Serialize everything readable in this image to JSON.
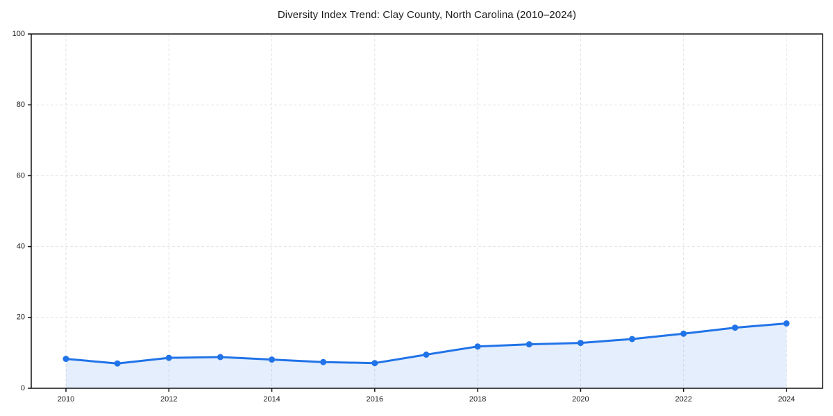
{
  "chart_data": {
    "type": "area",
    "title": "Diversity Index Trend: Clay County, North Carolina (2010–2024)",
    "x": [
      2010,
      2011,
      2012,
      2013,
      2014,
      2015,
      2016,
      2017,
      2018,
      2019,
      2020,
      2021,
      2022,
      2023,
      2024
    ],
    "series": [
      {
        "name": "Diversity Index",
        "values": [
          8.3,
          7.0,
          8.6,
          8.8,
          8.1,
          7.4,
          7.1,
          9.5,
          11.8,
          12.4,
          12.8,
          13.9,
          15.4,
          17.1,
          18.3
        ]
      }
    ],
    "xlabel": "",
    "ylabel": "",
    "xlim": [
      2010,
      2024
    ],
    "ylim": [
      0,
      100
    ],
    "xticks": [
      2010,
      2012,
      2014,
      2016,
      2018,
      2020,
      2022,
      2024
    ],
    "yticks": [
      0,
      20,
      40,
      60,
      80,
      100
    ],
    "grid": true,
    "grid_style": "dashed",
    "legend": false,
    "markers": true,
    "colors": {
      "line": "#2173e8",
      "marker": "#2173e8",
      "fill": "#2173e8",
      "fill_opacity": 0.12,
      "gridline": "#e2e2e2",
      "spine": "#111111",
      "text": "#1a1a1a",
      "background": "#ffffff"
    }
  }
}
